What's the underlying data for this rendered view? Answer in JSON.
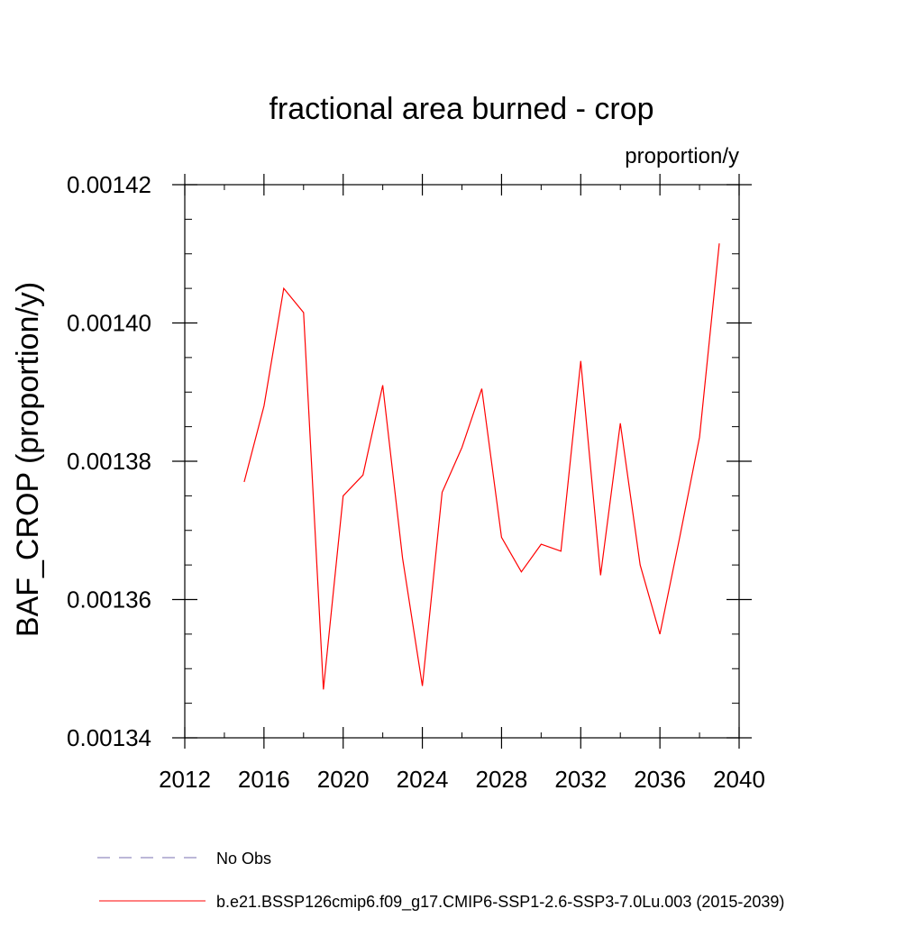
{
  "chart_data": {
    "type": "line",
    "title": "fractional area burned - crop",
    "subtitle": "proportion/y",
    "ylabel": "BAF_CROP  (proportion/y)",
    "xlabel": "",
    "xlim": [
      2012,
      2040
    ],
    "ylim": [
      0.00134,
      0.00142
    ],
    "x_ticks": [
      2012,
      2016,
      2020,
      2024,
      2028,
      2032,
      2036,
      2040
    ],
    "x_tick_labels": [
      "2012",
      "2016",
      "2020",
      "2024",
      "2028",
      "2032",
      "2036",
      "2040"
    ],
    "y_ticks": [
      0.00134,
      0.00136,
      0.00138,
      0.0014,
      0.00142
    ],
    "y_tick_labels": [
      "0.00134",
      "0.00136",
      "0.00138",
      "0.00140",
      "0.00142"
    ],
    "grid": false,
    "legend_position": "bottom-left",
    "legend": [
      {
        "label": "No Obs",
        "color": "#7a6fb0",
        "dash": true
      },
      {
        "label": "b.e21.BSSP126cmip6.f09_g17.CMIP6-SSP1-2.6-SSP3-7.0Lu.003 (2015-2039)",
        "color": "#ff0000",
        "dash": false
      }
    ],
    "series": [
      {
        "name": "b.e21.BSSP126cmip6.f09_g17.CMIP6-SSP1-2.6-SSP3-7.0Lu.003 (2015-2039)",
        "color": "#ff0000",
        "x": [
          2015,
          2016,
          2017,
          2018,
          2019,
          2020,
          2021,
          2022,
          2023,
          2024,
          2025,
          2026,
          2027,
          2028,
          2029,
          2030,
          2031,
          2032,
          2033,
          2034,
          2035,
          2036,
          2037,
          2038,
          2039
        ],
        "y": [
          0.001377,
          0.001388,
          0.001405,
          0.0014015,
          0.001347,
          0.001375,
          0.001378,
          0.001391,
          0.001366,
          0.0013475,
          0.0013755,
          0.001382,
          0.0013905,
          0.001369,
          0.001364,
          0.001368,
          0.001367,
          0.0013945,
          0.0013635,
          0.0013855,
          0.001365,
          0.001355,
          0.001369,
          0.0013835,
          0.0014115
        ]
      }
    ]
  }
}
